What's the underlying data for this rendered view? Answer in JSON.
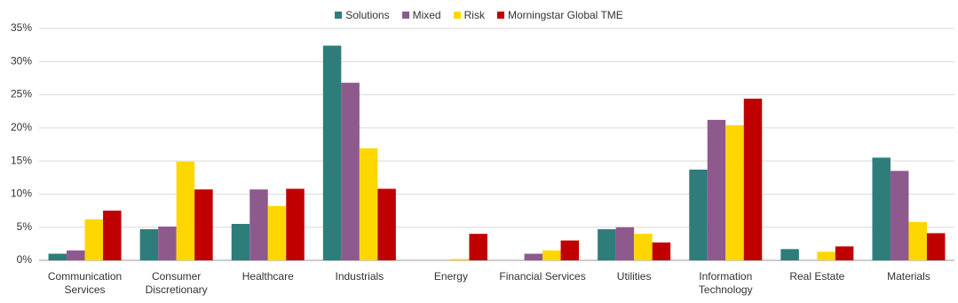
{
  "chart_data": {
    "type": "bar",
    "categories": [
      "Communication Services",
      "Consumer Discretionary",
      "Healthcare",
      "Industrials",
      "Energy",
      "Financial Services",
      "Utilities",
      "Information Technology",
      "Real Estate",
      "Materials"
    ],
    "series": [
      {
        "name": "Solutions",
        "color": "#2e7d7b",
        "values": [
          1.0,
          4.7,
          5.5,
          32.4,
          0,
          0,
          4.7,
          13.7,
          1.7,
          15.5
        ]
      },
      {
        "name": "Mixed",
        "color": "#8e5a8e",
        "values": [
          1.5,
          5.1,
          10.7,
          26.8,
          0,
          1.0,
          5.0,
          21.2,
          0,
          13.5
        ]
      },
      {
        "name": "Risk",
        "color": "#ffd700",
        "values": [
          6.2,
          14.9,
          8.2,
          16.9,
          0.2,
          1.5,
          4.0,
          20.4,
          1.3,
          5.8
        ]
      },
      {
        "name": "Morningstar Global TME",
        "color": "#c00000",
        "values": [
          7.5,
          10.7,
          10.8,
          10.8,
          4.0,
          3.0,
          2.7,
          24.4,
          2.1,
          4.1
        ]
      }
    ],
    "ylim": [
      0,
      35
    ],
    "yticks": [
      {
        "value": 0,
        "label": "0%"
      },
      {
        "value": 5,
        "label": "5%"
      },
      {
        "value": 10,
        "label": "10%"
      },
      {
        "value": 15,
        "label": "15%"
      },
      {
        "value": 20,
        "label": "20%"
      },
      {
        "value": 25,
        "label": "25%"
      },
      {
        "value": 30,
        "label": "30%"
      },
      {
        "value": 35,
        "label": "35%"
      }
    ],
    "grid": true,
    "legend": "top"
  }
}
